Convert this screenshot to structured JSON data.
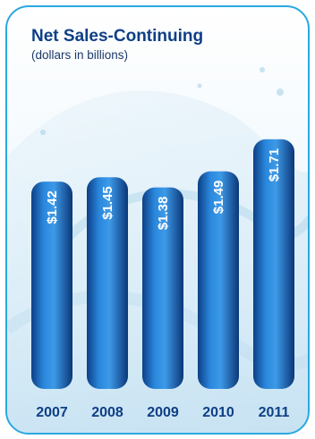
{
  "chart_data": {
    "type": "bar",
    "title": "Net Sales-Continuing",
    "subtitle": "(dollars in billions)",
    "categories": [
      "2007",
      "2008",
      "2009",
      "2010",
      "2011"
    ],
    "values": [
      1.42,
      1.45,
      1.38,
      1.49,
      1.71
    ],
    "value_labels": [
      "$1.42",
      "$1.45",
      "$1.38",
      "$1.49",
      "$1.71"
    ],
    "ylim": [
      0,
      1.9
    ],
    "grid": false,
    "legend": "none",
    "bar_color": "#1e72c8",
    "frame_color": "#2aa8e0",
    "title_color": "#0d3f86"
  }
}
